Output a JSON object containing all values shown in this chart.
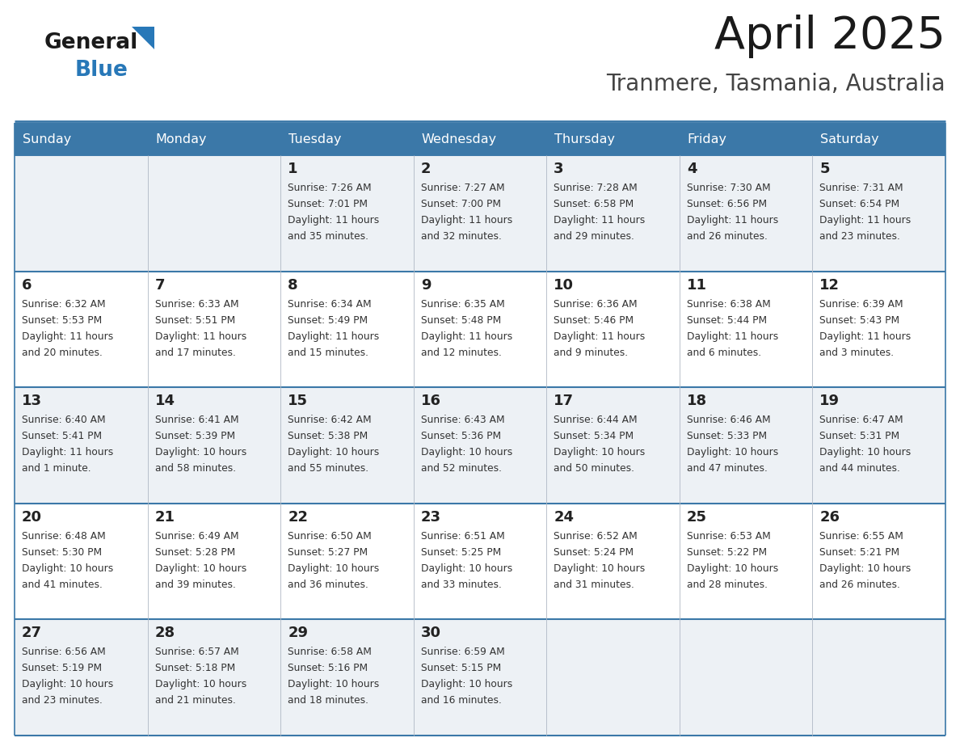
{
  "title": "April 2025",
  "subtitle": "Tranmere, Tasmania, Australia",
  "header_bg": "#3b78a8",
  "header_text": "#ffffff",
  "row_bg_odd": "#edf1f5",
  "row_bg_even": "#ffffff",
  "cell_border_color": "#3b78a8",
  "day_text_color": "#222222",
  "info_text_color": "#333333",
  "days_of_week": [
    "Sunday",
    "Monday",
    "Tuesday",
    "Wednesday",
    "Thursday",
    "Friday",
    "Saturday"
  ],
  "logo_general_color": "#1a1a1a",
  "logo_blue_color": "#2878b8",
  "logo_triangle_color": "#2878b8",
  "weeks": [
    [
      {
        "day": "",
        "info": ""
      },
      {
        "day": "",
        "info": ""
      },
      {
        "day": "1",
        "info": "Sunrise: 7:26 AM\nSunset: 7:01 PM\nDaylight: 11 hours\nand 35 minutes."
      },
      {
        "day": "2",
        "info": "Sunrise: 7:27 AM\nSunset: 7:00 PM\nDaylight: 11 hours\nand 32 minutes."
      },
      {
        "day": "3",
        "info": "Sunrise: 7:28 AM\nSunset: 6:58 PM\nDaylight: 11 hours\nand 29 minutes."
      },
      {
        "day": "4",
        "info": "Sunrise: 7:30 AM\nSunset: 6:56 PM\nDaylight: 11 hours\nand 26 minutes."
      },
      {
        "day": "5",
        "info": "Sunrise: 7:31 AM\nSunset: 6:54 PM\nDaylight: 11 hours\nand 23 minutes."
      }
    ],
    [
      {
        "day": "6",
        "info": "Sunrise: 6:32 AM\nSunset: 5:53 PM\nDaylight: 11 hours\nand 20 minutes."
      },
      {
        "day": "7",
        "info": "Sunrise: 6:33 AM\nSunset: 5:51 PM\nDaylight: 11 hours\nand 17 minutes."
      },
      {
        "day": "8",
        "info": "Sunrise: 6:34 AM\nSunset: 5:49 PM\nDaylight: 11 hours\nand 15 minutes."
      },
      {
        "day": "9",
        "info": "Sunrise: 6:35 AM\nSunset: 5:48 PM\nDaylight: 11 hours\nand 12 minutes."
      },
      {
        "day": "10",
        "info": "Sunrise: 6:36 AM\nSunset: 5:46 PM\nDaylight: 11 hours\nand 9 minutes."
      },
      {
        "day": "11",
        "info": "Sunrise: 6:38 AM\nSunset: 5:44 PM\nDaylight: 11 hours\nand 6 minutes."
      },
      {
        "day": "12",
        "info": "Sunrise: 6:39 AM\nSunset: 5:43 PM\nDaylight: 11 hours\nand 3 minutes."
      }
    ],
    [
      {
        "day": "13",
        "info": "Sunrise: 6:40 AM\nSunset: 5:41 PM\nDaylight: 11 hours\nand 1 minute."
      },
      {
        "day": "14",
        "info": "Sunrise: 6:41 AM\nSunset: 5:39 PM\nDaylight: 10 hours\nand 58 minutes."
      },
      {
        "day": "15",
        "info": "Sunrise: 6:42 AM\nSunset: 5:38 PM\nDaylight: 10 hours\nand 55 minutes."
      },
      {
        "day": "16",
        "info": "Sunrise: 6:43 AM\nSunset: 5:36 PM\nDaylight: 10 hours\nand 52 minutes."
      },
      {
        "day": "17",
        "info": "Sunrise: 6:44 AM\nSunset: 5:34 PM\nDaylight: 10 hours\nand 50 minutes."
      },
      {
        "day": "18",
        "info": "Sunrise: 6:46 AM\nSunset: 5:33 PM\nDaylight: 10 hours\nand 47 minutes."
      },
      {
        "day": "19",
        "info": "Sunrise: 6:47 AM\nSunset: 5:31 PM\nDaylight: 10 hours\nand 44 minutes."
      }
    ],
    [
      {
        "day": "20",
        "info": "Sunrise: 6:48 AM\nSunset: 5:30 PM\nDaylight: 10 hours\nand 41 minutes."
      },
      {
        "day": "21",
        "info": "Sunrise: 6:49 AM\nSunset: 5:28 PM\nDaylight: 10 hours\nand 39 minutes."
      },
      {
        "day": "22",
        "info": "Sunrise: 6:50 AM\nSunset: 5:27 PM\nDaylight: 10 hours\nand 36 minutes."
      },
      {
        "day": "23",
        "info": "Sunrise: 6:51 AM\nSunset: 5:25 PM\nDaylight: 10 hours\nand 33 minutes."
      },
      {
        "day": "24",
        "info": "Sunrise: 6:52 AM\nSunset: 5:24 PM\nDaylight: 10 hours\nand 31 minutes."
      },
      {
        "day": "25",
        "info": "Sunrise: 6:53 AM\nSunset: 5:22 PM\nDaylight: 10 hours\nand 28 minutes."
      },
      {
        "day": "26",
        "info": "Sunrise: 6:55 AM\nSunset: 5:21 PM\nDaylight: 10 hours\nand 26 minutes."
      }
    ],
    [
      {
        "day": "27",
        "info": "Sunrise: 6:56 AM\nSunset: 5:19 PM\nDaylight: 10 hours\nand 23 minutes."
      },
      {
        "day": "28",
        "info": "Sunrise: 6:57 AM\nSunset: 5:18 PM\nDaylight: 10 hours\nand 21 minutes."
      },
      {
        "day": "29",
        "info": "Sunrise: 6:58 AM\nSunset: 5:16 PM\nDaylight: 10 hours\nand 18 minutes."
      },
      {
        "day": "30",
        "info": "Sunrise: 6:59 AM\nSunset: 5:15 PM\nDaylight: 10 hours\nand 16 minutes."
      },
      {
        "day": "",
        "info": ""
      },
      {
        "day": "",
        "info": ""
      },
      {
        "day": "",
        "info": ""
      }
    ]
  ]
}
